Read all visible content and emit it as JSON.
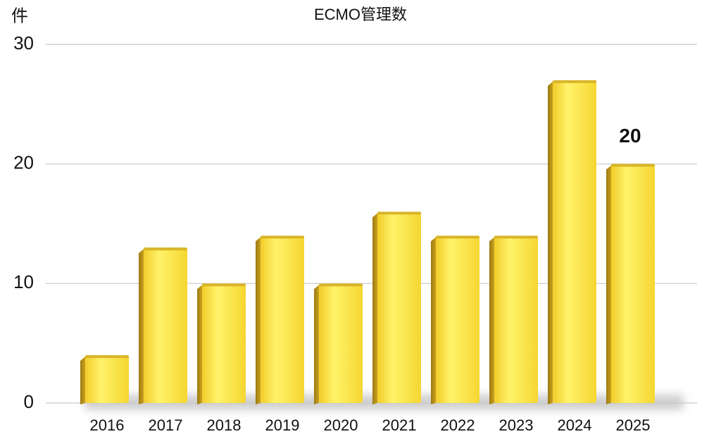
{
  "chart_data": {
    "type": "bar",
    "title": "ECMO管理数",
    "y_label": "件",
    "categories": [
      "2016",
      "2017",
      "2018",
      "2019",
      "2020",
      "2021",
      "2022",
      "2023",
      "2024",
      "2025"
    ],
    "values": [
      4,
      13,
      10,
      14,
      10,
      16,
      14,
      14,
      27,
      20
    ],
    "value_labels": [
      null,
      null,
      null,
      null,
      null,
      null,
      null,
      null,
      null,
      "20"
    ],
    "color": "#fde440",
    "ylim": [
      0,
      30
    ],
    "yticks": [
      0,
      10,
      20,
      30
    ],
    "grid": true
  }
}
